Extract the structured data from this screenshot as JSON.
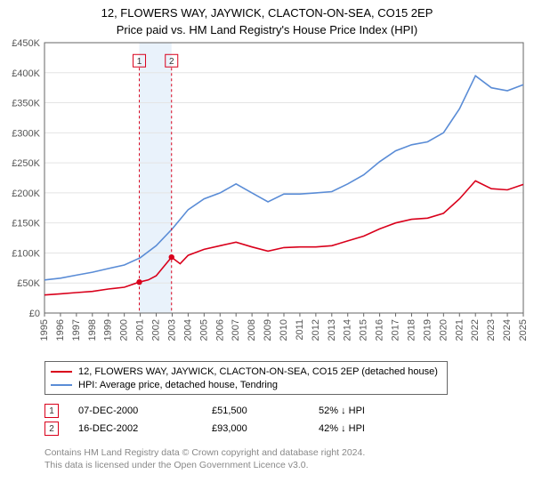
{
  "title_line1": "12, FLOWERS WAY, JAYWICK, CLACTON-ON-SEA, CO15 2EP",
  "title_line2": "Price paid vs. HM Land Registry's House Price Index (HPI)",
  "chart": {
    "type": "line",
    "plot_background": "#ffffff",
    "grid_color": "#e4e4e4",
    "border_color": "#666666",
    "x": {
      "min": 1995,
      "max": 2025,
      "ticks": [
        1995,
        1996,
        1997,
        1998,
        1999,
        2000,
        2001,
        2002,
        2003,
        2004,
        2005,
        2006,
        2007,
        2008,
        2009,
        2010,
        2011,
        2012,
        2013,
        2014,
        2015,
        2016,
        2017,
        2018,
        2019,
        2020,
        2021,
        2022,
        2023,
        2024,
        "2025"
      ],
      "tick_fontsize": 11
    },
    "y": {
      "min": 0,
      "max": 450000,
      "ticks": [
        0,
        50000,
        100000,
        150000,
        200000,
        250000,
        300000,
        350000,
        400000,
        450000
      ],
      "tick_labels": [
        "£0",
        "£50K",
        "£100K",
        "£150K",
        "£200K",
        "£250K",
        "£300K",
        "£350K",
        "£400K",
        "£450K"
      ],
      "tick_fontsize": 11
    },
    "band": {
      "from": 2000.94,
      "to": 2002.96,
      "fill": "#e9f2fb"
    },
    "series": [
      {
        "id": "hpi",
        "label": "HPI: Average price, detached house, Tendring",
        "color": "#5a8cd6",
        "width": 1.6,
        "points": [
          [
            1995,
            55000
          ],
          [
            1996,
            58000
          ],
          [
            1997,
            63000
          ],
          [
            1998,
            68000
          ],
          [
            1999,
            74000
          ],
          [
            2000,
            80000
          ],
          [
            2001,
            92000
          ],
          [
            2002,
            112000
          ],
          [
            2003,
            140000
          ],
          [
            2004,
            172000
          ],
          [
            2005,
            190000
          ],
          [
            2006,
            200000
          ],
          [
            2007,
            215000
          ],
          [
            2008,
            200000
          ],
          [
            2009,
            185000
          ],
          [
            2010,
            198000
          ],
          [
            2011,
            198000
          ],
          [
            2012,
            200000
          ],
          [
            2013,
            202000
          ],
          [
            2014,
            215000
          ],
          [
            2015,
            230000
          ],
          [
            2016,
            252000
          ],
          [
            2017,
            270000
          ],
          [
            2018,
            280000
          ],
          [
            2019,
            285000
          ],
          [
            2020,
            300000
          ],
          [
            2021,
            340000
          ],
          [
            2022,
            395000
          ],
          [
            2023,
            375000
          ],
          [
            2024,
            370000
          ],
          [
            2025,
            380000
          ]
        ]
      },
      {
        "id": "prop",
        "label": "12, FLOWERS WAY, JAYWICK, CLACTON-ON-SEA, CO15 2EP (detached house)",
        "color": "#d9001b",
        "width": 1.8,
        "points": [
          [
            1995,
            30000
          ],
          [
            1996,
            32000
          ],
          [
            1997,
            34000
          ],
          [
            1998,
            36000
          ],
          [
            1999,
            40000
          ],
          [
            2000,
            43000
          ],
          [
            2000.94,
            51500
          ],
          [
            2001.5,
            55000
          ],
          [
            2002,
            62000
          ],
          [
            2002.96,
            93000
          ],
          [
            2003.5,
            82000
          ],
          [
            2004,
            96000
          ],
          [
            2005,
            106000
          ],
          [
            2006,
            112000
          ],
          [
            2007,
            118000
          ],
          [
            2008,
            110000
          ],
          [
            2009,
            103000
          ],
          [
            2010,
            109000
          ],
          [
            2011,
            110000
          ],
          [
            2012,
            110000
          ],
          [
            2013,
            112000
          ],
          [
            2014,
            120000
          ],
          [
            2015,
            128000
          ],
          [
            2016,
            140000
          ],
          [
            2017,
            150000
          ],
          [
            2018,
            156000
          ],
          [
            2019,
            158000
          ],
          [
            2020,
            166000
          ],
          [
            2021,
            190000
          ],
          [
            2022,
            220000
          ],
          [
            2023,
            207000
          ],
          [
            2024,
            205000
          ],
          [
            2025,
            214000
          ]
        ]
      }
    ],
    "markers": [
      {
        "num": "1",
        "x": 2000.94,
        "y": 51500,
        "dash_color": "#d9001b",
        "box_color": "#d9001b",
        "box_top_y": 420000
      },
      {
        "num": "2",
        "x": 2002.96,
        "y": 93000,
        "dash_color": "#d9001b",
        "box_color": "#d9001b",
        "box_top_y": 420000
      }
    ]
  },
  "legend": [
    {
      "color": "#d9001b",
      "label": "12, FLOWERS WAY, JAYWICK, CLACTON-ON-SEA, CO15 2EP (detached house)"
    },
    {
      "color": "#5a8cd6",
      "label": "HPI: Average price, detached house, Tendring"
    }
  ],
  "notes": [
    {
      "num": "1",
      "color": "#d9001b",
      "date": "07-DEC-2000",
      "price": "£51,500",
      "pct": "52% ↓ HPI"
    },
    {
      "num": "2",
      "color": "#d9001b",
      "date": "16-DEC-2002",
      "price": "£93,000",
      "pct": "42% ↓ HPI"
    }
  ],
  "copyright_line1": "Contains HM Land Registry data © Crown copyright and database right 2024.",
  "copyright_line2": "This data is licensed under the Open Government Licence v3.0."
}
